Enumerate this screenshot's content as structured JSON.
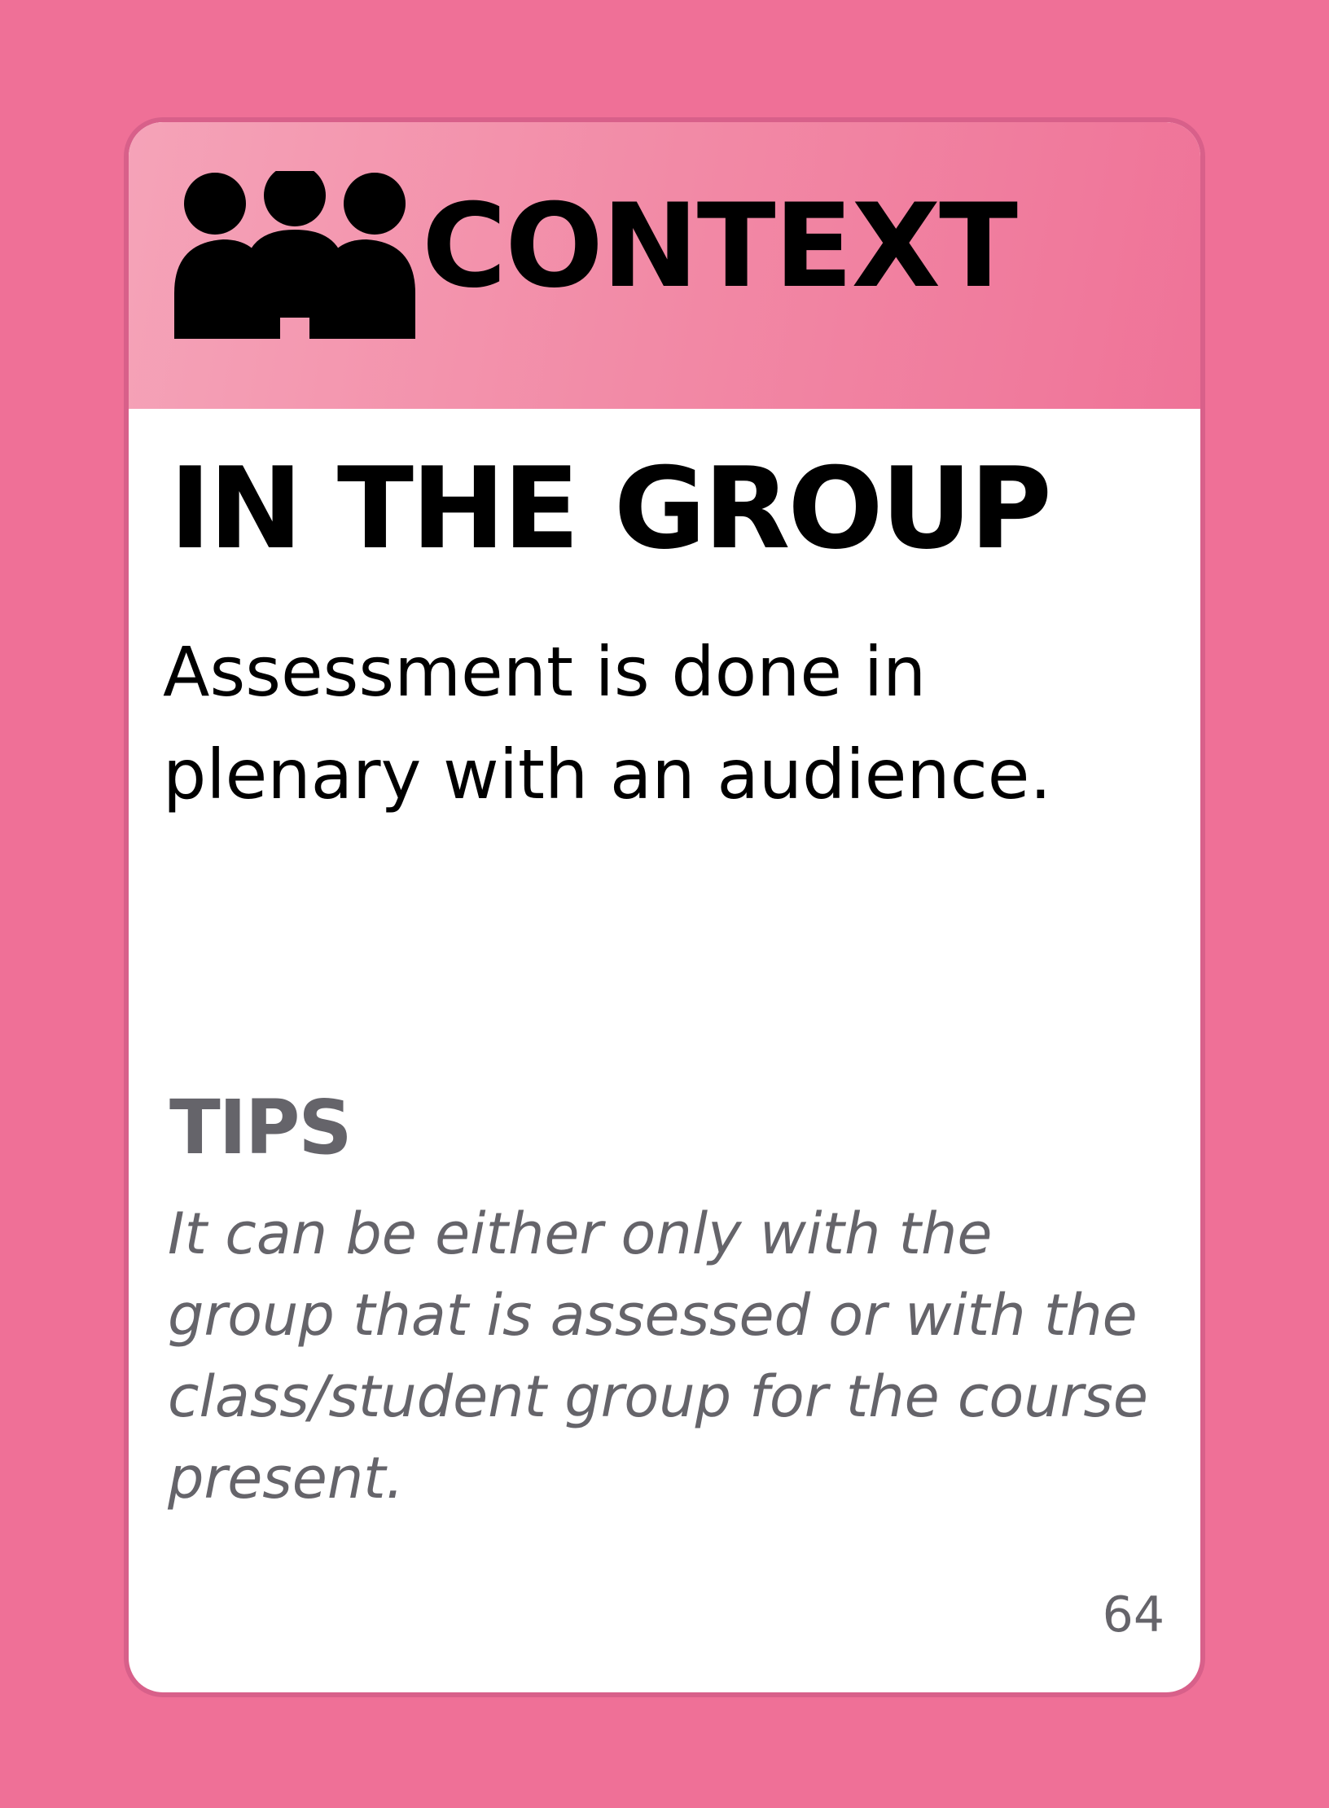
{
  "card": {
    "category": "CONTEXT",
    "category_icon": "group-people-icon",
    "title": "IN THE GROUP",
    "description": "Assessment is done in plenary with an audience.",
    "tips_heading": "TIPS",
    "tips_text": "It can be either only with the group that is assessed or with the class/student group for the course present.",
    "page_number": "64"
  },
  "colors": {
    "background": "#ef7097",
    "header_gradient_start": "#f5a3b8",
    "header_gradient_end": "#ef7398",
    "tips_text": "#65646a"
  }
}
